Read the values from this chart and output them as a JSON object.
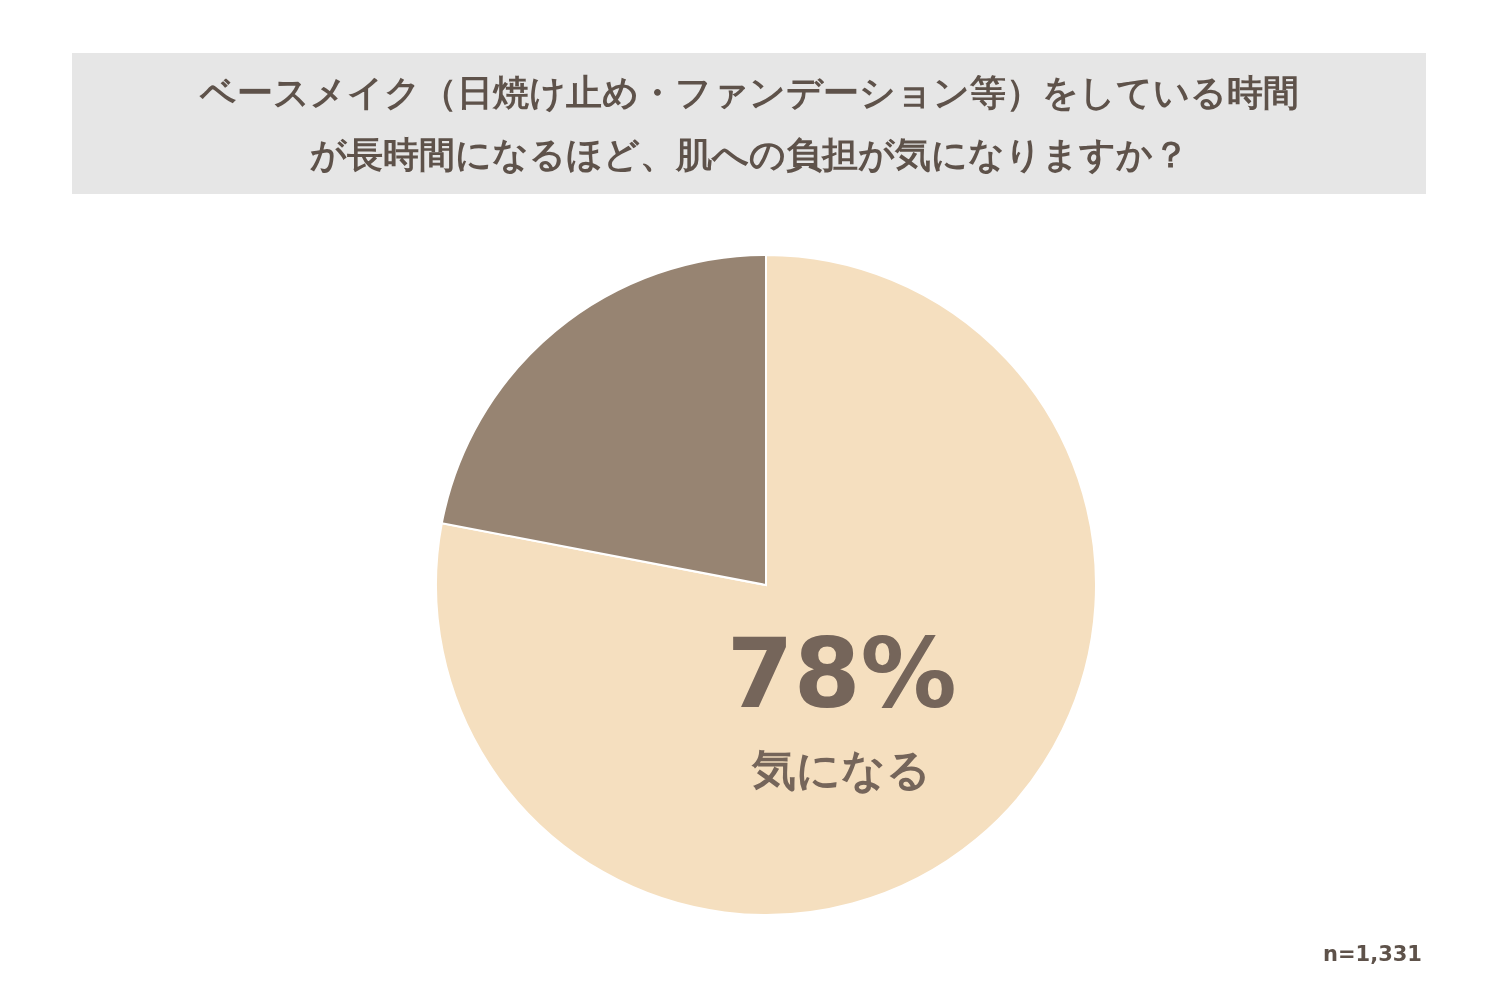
{
  "chart_data": {
    "type": "pie",
    "title": "ベースメイク（日焼け止め・ファンデーション等）をしている時間が長時間になるほど、肌への負担が気になりますか？",
    "categories": [
      "気になる",
      null
    ],
    "values": [
      78,
      22
    ],
    "colors": [
      "#f5dfbf",
      "#978472"
    ],
    "value_labels": [
      "78%",
      null
    ],
    "annotations": [
      "n=1,331"
    ]
  }
}
